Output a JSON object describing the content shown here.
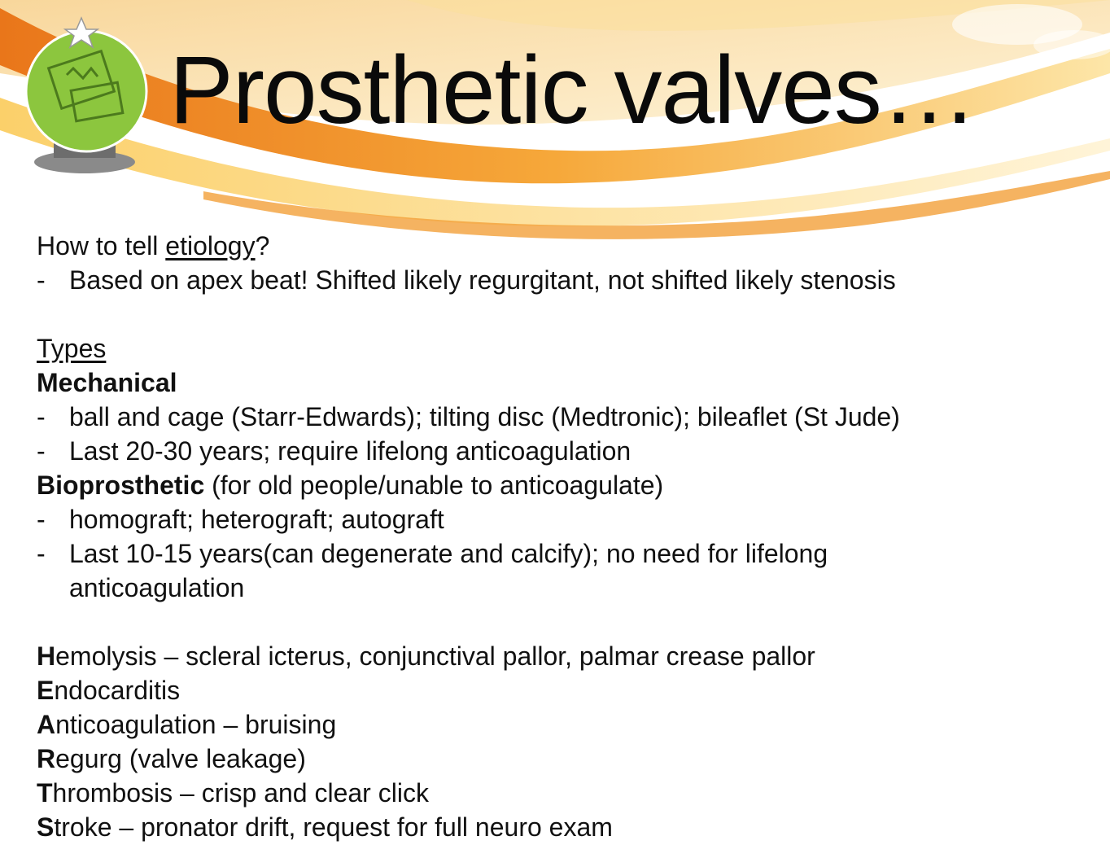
{
  "slide": {
    "title": "Prosthetic valves…"
  },
  "colors": {
    "banner_orange": "#f08a1c",
    "banner_yellow": "#fbd46a",
    "logo_green": "#8cc63e"
  },
  "icons": {
    "logo": "presentation-globe-icon",
    "star": "star-icon"
  },
  "etiology": {
    "question_prefix": "How to tell ",
    "question_link": "etiology",
    "question_suffix": "?",
    "answer": "Based on apex beat! Shifted likely regurgitant, not shifted likely stenosis"
  },
  "types": {
    "heading": "Types",
    "mechanical": {
      "label": "Mechanical",
      "bullets": [
        "ball and cage (Starr-Edwards); tilting disc (Medtronic); bileaflet (St Jude)",
        "Last 20-30 years; require lifelong anticoagulation"
      ]
    },
    "bioprosthetic": {
      "label": "Bioprosthetic",
      "note": " (for old people/unable to anticoagulate)",
      "bullets": [
        "homograft; heterograft; autograft",
        "Last 10-15 years(can degenerate and calcify); no need for lifelong anticoagulation"
      ]
    }
  },
  "heartst": [
    {
      "letter": "H",
      "text": "emolysis – scleral icterus, conjunctival pallor, palmar crease pallor"
    },
    {
      "letter": "E",
      "text": "ndocarditis"
    },
    {
      "letter": "A",
      "text": "nticoagulation – bruising"
    },
    {
      "letter": "R",
      "text": "egurg (valve leakage)"
    },
    {
      "letter": "T",
      "text": "hrombosis – crisp and clear click"
    },
    {
      "letter": "S",
      "text": "troke – pronator drift, request for full neuro exam"
    }
  ],
  "dash": "-"
}
